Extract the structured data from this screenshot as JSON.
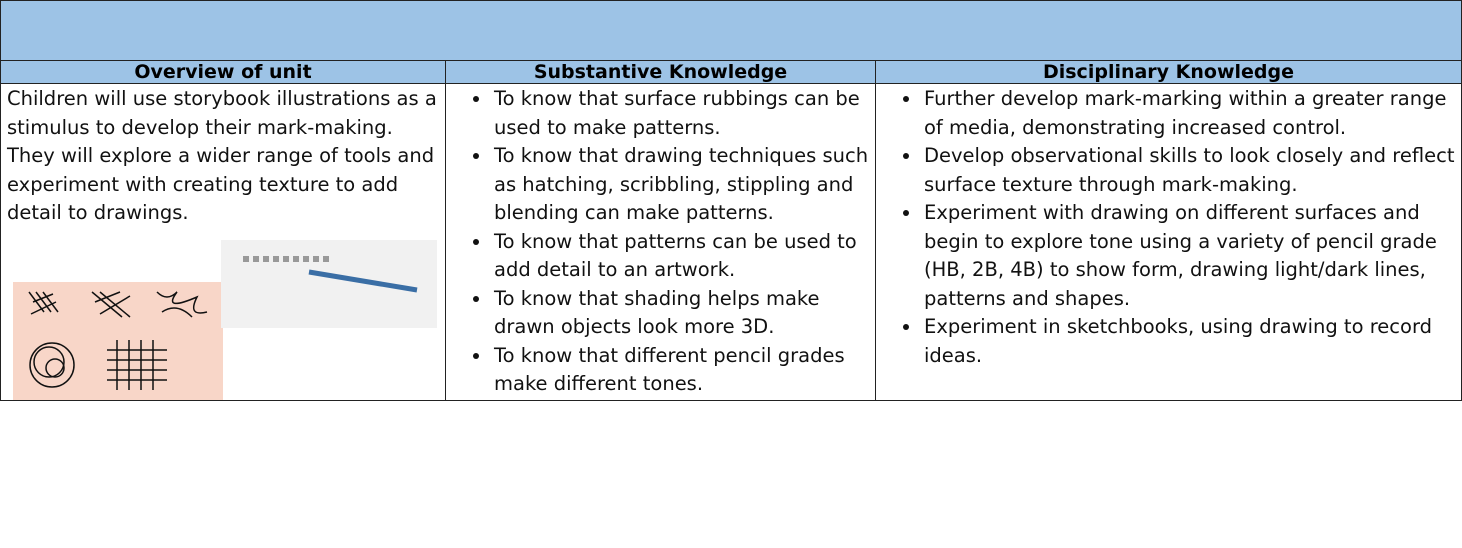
{
  "table": {
    "headers": [
      "Overview of unit",
      "Substantive Knowledge",
      "Disciplinary Knowledge"
    ],
    "rows": [
      [
        "Children will use storybook illustrations as a stimulus to develop their mark-making. They will explore a wider range of tools and experiment with creating texture to add detail to drawings.",
        [
          "To know that surface rubbings can be used to make patterns.",
          "To know that drawing techniques such as hatching, scribbling, stippling and blending can make patterns.",
          "To know that patterns can be used to add detail to an artwork.",
          "To know that shading helps make drawn objects look more 3D.",
          "To know that different pencil grades make different tones."
        ],
        [
          "Further develop mark-marking within a greater range of media, demonstrating increased control.",
          "Develop observational skills to look closely and reflect surface texture through mark-making.",
          "Experiment with drawing on different surfaces and begin to explore tone using a variety of pencil grade (HB, 2B, 4B) to show form, drawing light/dark lines, patterns and shapes.",
          "Experiment in sketchbooks, using drawing to record ideas."
        ]
      ]
    ]
  }
}
